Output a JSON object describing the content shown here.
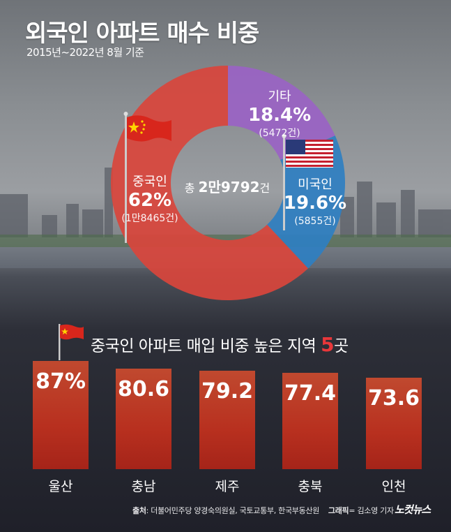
{
  "header": {
    "title": "외국인 아파트 매수 비중",
    "subtitle": "2015년~2022년 8월 기준"
  },
  "colors": {
    "china": "#d9453c",
    "usa": "#2f7fc1",
    "other": "#9a63c4",
    "bar": "#b8301f",
    "highlight": "#e8373a"
  },
  "chart_data": [
    {
      "type": "pie",
      "title": "외국인 아파트 매수 비중",
      "subtitle": "2015년~2022년 8월 기준",
      "center_label": {
        "prefix": "총 ",
        "value": "2만9792",
        "suffix": "건"
      },
      "slices": [
        {
          "name": "중국인",
          "value": 62,
          "pct_label": "62%",
          "count_label": "(1만8465건)",
          "color": "#d9453c"
        },
        {
          "name": "미국인",
          "value": 19.6,
          "pct_label": "19.6%",
          "count_label": "(5855건)",
          "color": "#2f7fc1"
        },
        {
          "name": "기타",
          "value": 18.4,
          "pct_label": "18.4%",
          "count_label": "(5472건)",
          "color": "#9a63c4"
        }
      ]
    },
    {
      "type": "bar",
      "title": "중국인 아파트 매입 비중 높은 지역 5곳",
      "categories": [
        "울산",
        "충남",
        "제주",
        "충북",
        "인천"
      ],
      "values": [
        87,
        80.6,
        79.2,
        77.4,
        73.6
      ],
      "value_labels": [
        "87%",
        "80.6",
        "79.2",
        "77.4",
        "73.6"
      ],
      "ylim": [
        0,
        100
      ]
    }
  ],
  "bar_section": {
    "heading_text": "중국인 아파트 매입 비중 높은 지역 ",
    "heading_highlight": "5",
    "heading_suffix": "곳"
  },
  "footer": {
    "source_label": "출처",
    "source_text": ": 더불어민주당 양경숙의원실, 국토교통부, 한국부동산원",
    "graphic_label": "그래픽",
    "graphic_text": "= 김소영 기자",
    "logo_text": "노컷뉴스"
  }
}
